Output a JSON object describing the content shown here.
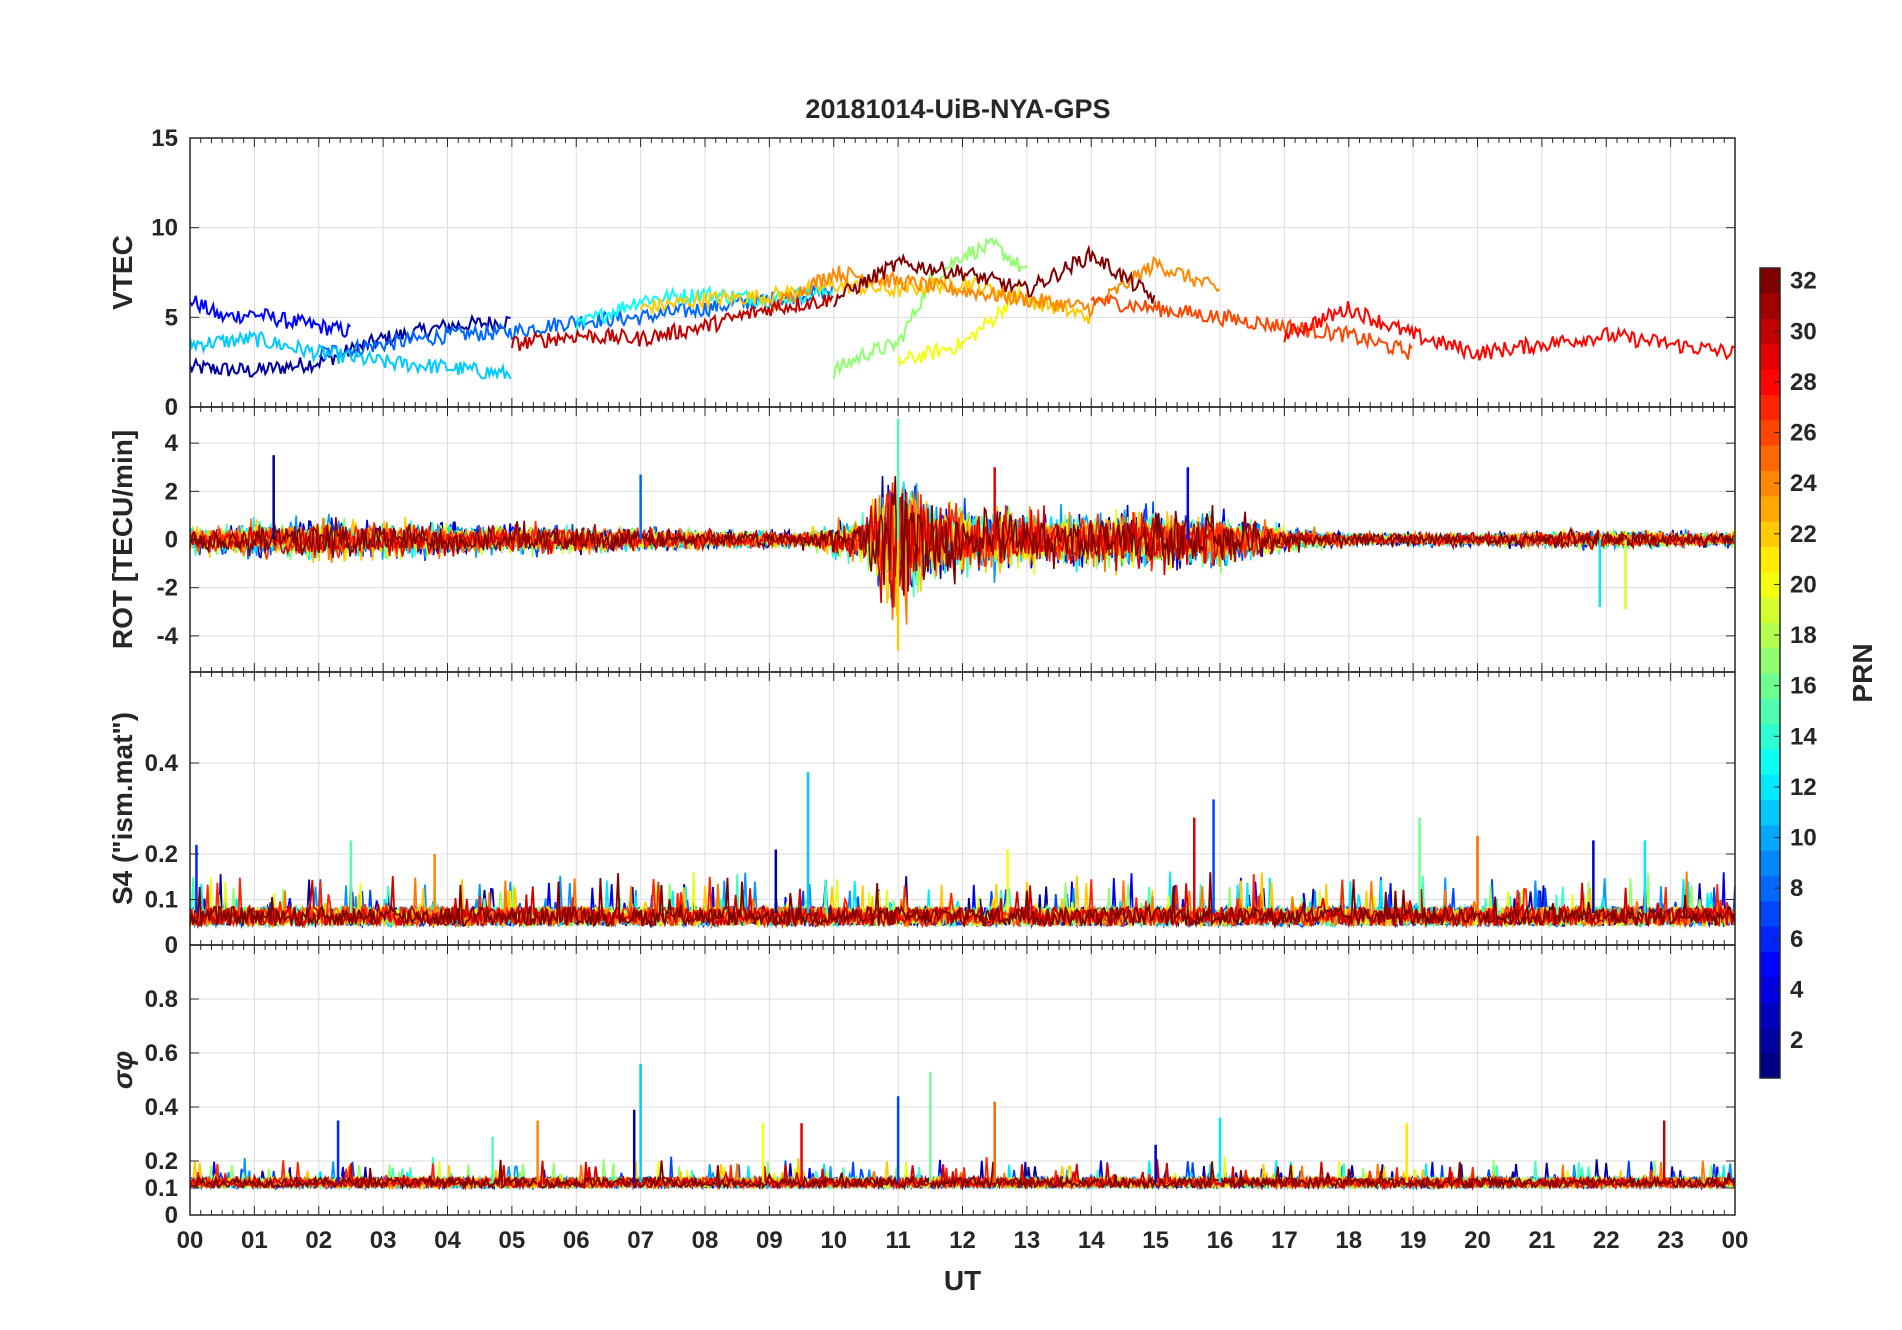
{
  "title": "20181014-UiB-NYA-GPS",
  "colors": {
    "text": "#262626",
    "grid": "#dcdcdc",
    "background": "#ffffff"
  },
  "chart_data": [
    {
      "id": "vtec",
      "type": "line",
      "title": "20181014-UiB-NYA-GPS",
      "ylabel": "VTEC",
      "ylim": [
        0,
        15
      ],
      "yticks": [
        "0",
        "5",
        "10",
        "15"
      ],
      "ytick_values": [
        0,
        5,
        10,
        15
      ],
      "xlim": [
        0,
        24
      ],
      "grid": true,
      "series_note": "one line per GPS satellite PRN, colored by PRN (jet colormap)",
      "series": [
        {
          "prn": 2,
          "x": [
            0,
            1,
            2,
            3,
            4,
            5
          ],
          "y": [
            2.2,
            2.0,
            2.5,
            3.8,
            4.5,
            4.8
          ]
        },
        {
          "prn": 5,
          "x": [
            0,
            0.5,
            1,
            1.5,
            2,
            2.5
          ],
          "y": [
            6.0,
            5.0,
            5.2,
            4.8,
            4.5,
            4.2
          ]
        },
        {
          "prn": 8,
          "x": [
            2,
            3,
            4,
            5,
            6,
            7,
            8,
            9,
            10
          ],
          "y": [
            3.0,
            3.5,
            4.0,
            4.2,
            4.8,
            5.0,
            5.5,
            6.0,
            6.5
          ]
        },
        {
          "prn": 11,
          "x": [
            0,
            1,
            2,
            3,
            4,
            5
          ],
          "y": [
            3.5,
            3.8,
            3.0,
            2.5,
            2.2,
            1.8
          ]
        },
        {
          "prn": 13,
          "x": [
            6,
            7,
            8,
            9,
            10
          ],
          "y": [
            4.5,
            6.0,
            6.3,
            6.0,
            6.5
          ]
        },
        {
          "prn": 17,
          "x": [
            10,
            10.5,
            11,
            11.5,
            12,
            12.5,
            13
          ],
          "y": [
            2.0,
            3.0,
            3.5,
            7.0,
            8.5,
            9.0,
            7.5
          ]
        },
        {
          "prn": 20,
          "x": [
            11,
            11.5,
            12,
            12.5,
            13
          ],
          "y": [
            2.5,
            3.0,
            3.5,
            5.0,
            7.0
          ]
        },
        {
          "prn": 22,
          "x": [
            7,
            8,
            9,
            10,
            11,
            12,
            13,
            14
          ],
          "y": [
            5.5,
            6.0,
            6.2,
            6.8,
            6.5,
            7.0,
            6.0,
            5.0
          ]
        },
        {
          "prn": 24,
          "x": [
            9,
            10,
            11,
            12,
            13,
            14,
            15,
            16
          ],
          "y": [
            5.5,
            7.5,
            7.0,
            6.5,
            6.0,
            5.5,
            8.0,
            6.5
          ]
        },
        {
          "prn": 26,
          "x": [
            14,
            15,
            16,
            17,
            18,
            19
          ],
          "y": [
            6.0,
            5.5,
            5.0,
            4.5,
            4.0,
            3.0
          ]
        },
        {
          "prn": 28,
          "x": [
            17,
            18,
            19,
            20,
            21,
            22,
            23,
            24
          ],
          "y": [
            4.0,
            5.5,
            4.0,
            3.0,
            3.5,
            4.0,
            3.5,
            3.0
          ]
        },
        {
          "prn": 30,
          "x": [
            5,
            6,
            7,
            8,
            9,
            10
          ],
          "y": [
            3.5,
            4.0,
            3.8,
            4.5,
            5.5,
            6.0
          ]
        },
        {
          "prn": 32,
          "x": [
            10,
            11,
            12,
            13,
            14,
            15
          ],
          "y": [
            6.0,
            8.0,
            7.5,
            6.5,
            8.5,
            6.0
          ]
        }
      ]
    },
    {
      "id": "rot",
      "type": "line",
      "ylabel": "ROT [TECU/min]",
      "ylim": [
        -5.5,
        5.5
      ],
      "yticks": [
        "-4",
        "-2",
        "0",
        "2",
        "4"
      ],
      "ytick_values": [
        -4,
        -2,
        0,
        2,
        4
      ],
      "xlim": [
        0,
        24
      ],
      "grid": true,
      "envelope": {
        "x": [
          0,
          2,
          4,
          6,
          8,
          9.5,
          10.5,
          11,
          11.5,
          12,
          13,
          14,
          15,
          16,
          17,
          18,
          20,
          22,
          24
        ],
        "amplitude": [
          0.8,
          1.2,
          1.0,
          0.8,
          0.6,
          0.5,
          1.5,
          4.8,
          2.5,
          2.2,
          1.8,
          1.6,
          1.8,
          1.6,
          0.8,
          0.4,
          0.4,
          0.6,
          0.4
        ]
      },
      "spikes": [
        {
          "x": 1.3,
          "y": 3.5
        },
        {
          "x": 7.0,
          "y": 2.7
        },
        {
          "x": 11.0,
          "y": 5.0
        },
        {
          "x": 11.0,
          "y": -4.6
        },
        {
          "x": 12.5,
          "y": 3.0
        },
        {
          "x": 15.5,
          "y": 3.0
        },
        {
          "x": 21.9,
          "y": -2.8
        },
        {
          "x": 22.3,
          "y": -2.9
        }
      ]
    },
    {
      "id": "s4",
      "type": "line",
      "ylabel": "S4 (\"ism.mat\")",
      "ylim": [
        0,
        0.6
      ],
      "yticks": [
        "0",
        "0.1",
        "0.2",
        "0.4"
      ],
      "ytick_values": [
        0,
        0.1,
        0.2,
        0.4
      ],
      "xlim": [
        0,
        24
      ],
      "grid": true,
      "baseline": 0.07,
      "spikes": [
        {
          "x": 0.1,
          "y": 0.22
        },
        {
          "x": 2.5,
          "y": 0.23
        },
        {
          "x": 3.8,
          "y": 0.2
        },
        {
          "x": 9.1,
          "y": 0.21
        },
        {
          "x": 9.6,
          "y": 0.38
        },
        {
          "x": 12.7,
          "y": 0.21
        },
        {
          "x": 15.6,
          "y": 0.28
        },
        {
          "x": 15.9,
          "y": 0.32
        },
        {
          "x": 19.1,
          "y": 0.28
        },
        {
          "x": 20.0,
          "y": 0.24
        },
        {
          "x": 21.8,
          "y": 0.23
        },
        {
          "x": 22.6,
          "y": 0.23
        }
      ]
    },
    {
      "id": "sigma_phi",
      "type": "line",
      "ylabel": "σφ",
      "ylim": [
        0,
        1
      ],
      "yticks": [
        "0",
        "0.1",
        "0.2",
        "0.4",
        "0.6",
        "0.8"
      ],
      "ytick_values": [
        0,
        0.1,
        0.2,
        0.4,
        0.6,
        0.8
      ],
      "xlim": [
        0,
        24
      ],
      "xlabel": "UT",
      "xticks": [
        "00",
        "01",
        "02",
        "03",
        "04",
        "05",
        "06",
        "07",
        "08",
        "09",
        "10",
        "11",
        "12",
        "13",
        "14",
        "15",
        "16",
        "17",
        "18",
        "19",
        "20",
        "21",
        "22",
        "23",
        "00"
      ],
      "grid": true,
      "baseline": 0.12,
      "spikes": [
        {
          "x": 2.3,
          "y": 0.35
        },
        {
          "x": 4.7,
          "y": 0.29
        },
        {
          "x": 5.4,
          "y": 0.35
        },
        {
          "x": 6.9,
          "y": 0.39
        },
        {
          "x": 7.0,
          "y": 0.56
        },
        {
          "x": 8.9,
          "y": 0.34
        },
        {
          "x": 9.5,
          "y": 0.34
        },
        {
          "x": 11.0,
          "y": 0.44
        },
        {
          "x": 11.5,
          "y": 0.53
        },
        {
          "x": 12.5,
          "y": 0.42
        },
        {
          "x": 15.0,
          "y": 0.26
        },
        {
          "x": 16.0,
          "y": 0.36
        },
        {
          "x": 18.9,
          "y": 0.34
        },
        {
          "x": 22.9,
          "y": 0.35
        }
      ]
    }
  ],
  "colorbar": {
    "label": "PRN",
    "range": [
      1,
      32
    ],
    "ticks": [
      "2",
      "4",
      "6",
      "8",
      "10",
      "12",
      "14",
      "16",
      "18",
      "20",
      "22",
      "24",
      "26",
      "28",
      "30",
      "32"
    ],
    "tick_values": [
      2,
      4,
      6,
      8,
      10,
      12,
      14,
      16,
      18,
      20,
      22,
      24,
      26,
      28,
      30,
      32
    ],
    "colormap": "jet"
  }
}
